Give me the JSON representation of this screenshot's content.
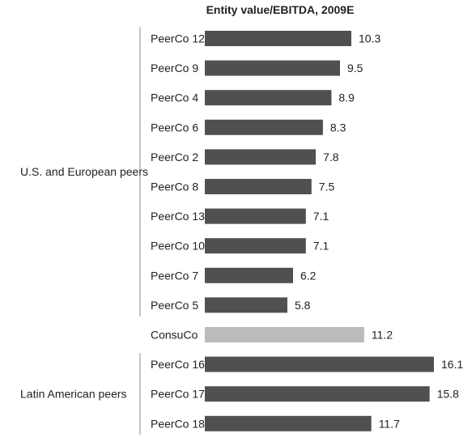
{
  "chart_data": {
    "type": "bar",
    "orientation": "horizontal",
    "title": "Entity value/EBITDA, 2009E",
    "xlabel": "",
    "ylabel": "",
    "xlim": [
      0,
      16.1
    ],
    "grid": false,
    "groups": [
      {
        "label": "U.S. and European peers",
        "first": 0,
        "last": 9
      },
      {
        "label": "Latin American peers",
        "first": 11,
        "last": 13
      }
    ],
    "categories": [
      "PeerCo 12",
      "PeerCo 9",
      "PeerCo 4",
      "PeerCo 6",
      "PeerCo 2",
      "PeerCo 8",
      "PeerCo 13",
      "PeerCo 10",
      "PeerCo 7",
      "PeerCo 5",
      "ConsuCo",
      "PeerCo 16",
      "PeerCo 17",
      "PeerCo 18"
    ],
    "values": [
      10.3,
      9.5,
      8.9,
      8.3,
      7.8,
      7.5,
      7.1,
      7.1,
      6.2,
      5.8,
      11.2,
      16.1,
      15.8,
      11.7
    ],
    "value_labels": [
      "10.3",
      "9.5",
      "8.9",
      "8.3",
      "7.8",
      "7.5",
      "7.1",
      "7.1",
      "6.2",
      "5.8",
      "11.2",
      "16.1",
      "15.8",
      "11.7"
    ],
    "highlight": "ConsuCo",
    "colors": {
      "bar": "#505050",
      "highlight": "#bbbbbb",
      "bracket": "#888888"
    }
  }
}
